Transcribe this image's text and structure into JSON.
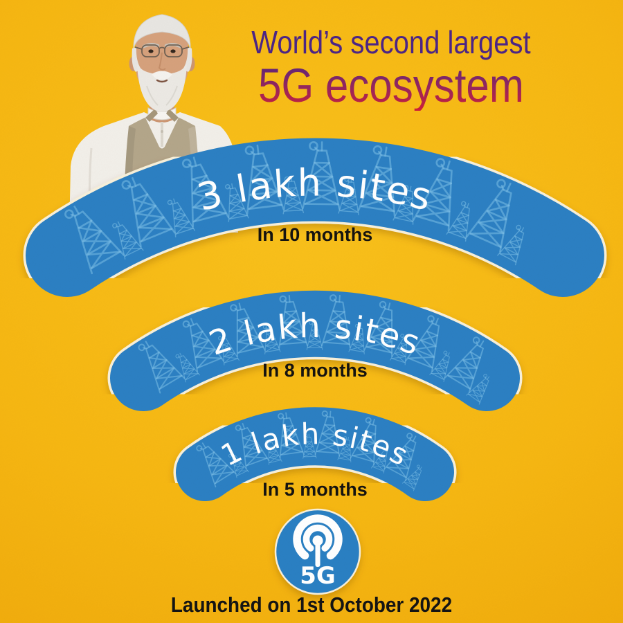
{
  "title": {
    "line1": "World’s second largest",
    "line2": "5G ecosystem"
  },
  "bands": [
    {
      "label": "3 lakh sites",
      "duration": "In 10 months",
      "sites": 300000,
      "months": 10
    },
    {
      "label": "2 lakh sites",
      "duration": "In 8 months",
      "sites": 200000,
      "months": 8
    },
    {
      "label": "1 lakh sites",
      "duration": "In 5 months",
      "sites": 100000,
      "months": 5
    }
  ],
  "logo": {
    "label": "5G",
    "icon": "broadcast-antenna-icon"
  },
  "footer": {
    "text": "Launched on 1st October 2022"
  },
  "portrait": {
    "description": "Prime Minister portrait photo"
  },
  "colors": {
    "background_yellow": "#f6b712",
    "band_blue": "#2c80c3",
    "tower_blue": "#7bbde6",
    "title_purple": "#4c2586",
    "title_red": "#d02038",
    "text_black": "#151310",
    "cream_edge": "#f8f0da",
    "white": "#ffffff"
  },
  "chart_data": {
    "type": "bar",
    "title": "World’s second largest 5G ecosystem",
    "categories": [
      "In 5 months",
      "In 8 months",
      "In 10 months"
    ],
    "values": [
      100000,
      200000,
      300000
    ],
    "value_labels": [
      "1 lakh sites",
      "2 lakh sites",
      "3 lakh sites"
    ],
    "xlabel": "",
    "ylabel": "",
    "legend": false,
    "annotations": [
      "Launched on 1st October 2022"
    ]
  }
}
